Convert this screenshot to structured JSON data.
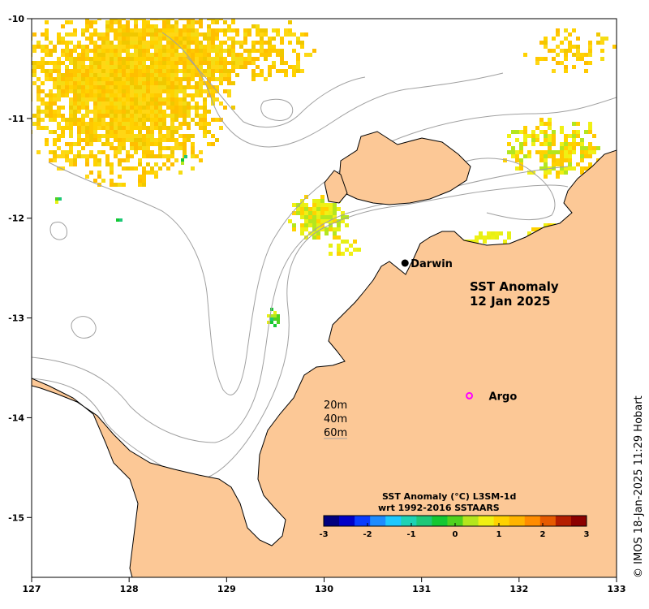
{
  "title": {
    "line1": "SST Anomaly",
    "line2": "12 Jan 2025"
  },
  "credit": "© IMOS 18-Jan-2025 11:29 Hobart",
  "axes": {
    "lon_range": [
      127,
      133
    ],
    "lat_range": [
      -15.6,
      -10
    ],
    "x_ticks": [
      "127",
      "128",
      "129",
      "130",
      "131",
      "132",
      "133"
    ],
    "y_ticks": [
      "-10",
      "-11",
      "-12",
      "-13",
      "-14",
      "-15"
    ]
  },
  "places": [
    {
      "name": "Darwin",
      "lon": 130.83,
      "lat": -12.45,
      "marker": "filled-dot",
      "color": "#000000"
    },
    {
      "name": "Argo",
      "lon": 131.49,
      "lat": -13.78,
      "marker": "ring",
      "color": "#ff00ff"
    }
  ],
  "depth_legend": [
    "20m",
    "40m",
    "60m"
  ],
  "colorbar": {
    "title_line1": "SST Anomaly (°C) L3SM-1d",
    "title_line2": "wrt 1992-2016 SSTAARS",
    "range": [
      -3,
      3
    ],
    "ticks": [
      "-3",
      "-2",
      "-1",
      "0",
      "1",
      "2",
      "3"
    ],
    "colors": [
      "#00007f",
      "#0000c8",
      "#0a3cff",
      "#1e8cff",
      "#1ec8ff",
      "#1ed2b4",
      "#1ec878",
      "#14c832",
      "#50d21e",
      "#b4e61e",
      "#f0f014",
      "#ffd200",
      "#ffb400",
      "#ff8c00",
      "#e65a00",
      "#b41e00",
      "#8c0000"
    ]
  },
  "colors": {
    "land": "#fcc896",
    "ocean": "#ffffff",
    "bathymetry": "#a0a0a0",
    "coast": "#000000"
  }
}
